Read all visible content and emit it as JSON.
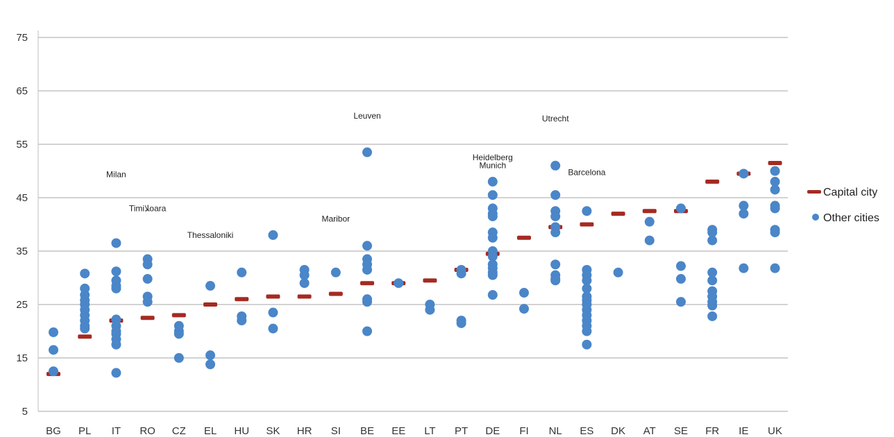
{
  "chart_data": {
    "type": "scatter",
    "title": "",
    "xlabel": "",
    "ylabel": "",
    "ylim": [
      5,
      80
    ],
    "yticks": [
      5,
      15,
      25,
      35,
      45,
      55,
      65,
      75
    ],
    "grid": true,
    "legend_position": "right",
    "categories": [
      "BG",
      "PL",
      "IT",
      "RO",
      "CZ",
      "EL",
      "HU",
      "SK",
      "HR",
      "SI",
      "BE",
      "EE",
      "LT",
      "PT",
      "DE",
      "FI",
      "NL",
      "ES",
      "DK",
      "AT",
      "SE",
      "FR",
      "IE",
      "UK"
    ],
    "series": [
      {
        "name": "Capital city",
        "color": "#a52a22",
        "marker": "dash",
        "values": [
          12,
          19,
          22,
          22.5,
          23,
          25,
          26,
          26.5,
          26.5,
          27,
          29,
          29,
          29.5,
          31.5,
          34.5,
          37.5,
          39.5,
          40,
          42,
          42.5,
          42.5,
          48,
          49.5,
          51.5
        ]
      },
      {
        "name": "Other cities",
        "color": "#4a86c8",
        "marker": "circle",
        "points": [
          {
            "category": "BG",
            "values": [
              19.8,
              16.5,
              12.5
            ]
          },
          {
            "category": "PL",
            "values": [
              30.8,
              28,
              26.8,
              25.8,
              25,
              24,
              23,
              22,
              21,
              20.5
            ]
          },
          {
            "category": "IT",
            "values": [
              36.5,
              31.2,
              29.5,
              28.5,
              28,
              22.2,
              21,
              20,
              19.5,
              18.5,
              17.5,
              12.2
            ]
          },
          {
            "category": "RO",
            "values": [
              33.5,
              32.5,
              29.8,
              26.5,
              25.5
            ]
          },
          {
            "category": "CZ",
            "values": [
              21,
              20,
              19.5,
              15
            ]
          },
          {
            "category": "EL",
            "values": [
              28.5,
              15.5,
              13.8
            ]
          },
          {
            "category": "HU",
            "values": [
              31,
              22.8,
              22
            ]
          },
          {
            "category": "SK",
            "values": [
              38,
              23.5,
              20.5
            ]
          },
          {
            "category": "HR",
            "values": [
              31.5,
              30.5,
              29
            ]
          },
          {
            "category": "SI",
            "values": [
              31
            ]
          },
          {
            "category": "BE",
            "values": [
              53.5,
              36,
              33.5,
              32.5,
              31.5,
              26,
              25.5,
              20
            ]
          },
          {
            "category": "EE",
            "values": [
              29
            ]
          },
          {
            "category": "LT",
            "values": [
              25,
              24
            ]
          },
          {
            "category": "PT",
            "values": [
              31.5,
              30.8,
              22,
              21.5
            ]
          },
          {
            "category": "DE",
            "values": [
              48,
              45.5,
              43,
              42,
              41.5,
              38.5,
              37.5,
              35,
              34,
              32.5,
              31.8,
              31,
              30.5,
              26.8
            ]
          },
          {
            "category": "FI",
            "values": [
              27.2,
              24.2
            ]
          },
          {
            "category": "NL",
            "values": [
              51,
              45.5,
              42.5,
              41.5,
              39.5,
              38.5,
              32.5,
              30.5,
              29.8,
              29.5
            ]
          },
          {
            "category": "ES",
            "values": [
              42.5,
              31.5,
              30.5,
              29.5,
              28,
              26.5,
              25.8,
              25,
              24,
              23,
              22,
              21,
              20,
              17.5
            ]
          },
          {
            "category": "DK",
            "values": [
              31
            ]
          },
          {
            "category": "AT",
            "values": [
              40.5,
              37
            ]
          },
          {
            "category": "SE",
            "values": [
              43,
              32.2,
              29.8,
              25.5
            ]
          },
          {
            "category": "FR",
            "values": [
              39,
              38.5,
              37,
              31,
              29.5,
              27.5,
              26.5,
              25.5,
              24.8,
              22.8
            ]
          },
          {
            "category": "IE",
            "values": [
              49.5,
              43.5,
              42,
              31.8
            ]
          },
          {
            "category": "UK",
            "values": [
              50,
              48,
              46.5,
              43.5,
              43,
              39,
              38.5,
              31.8
            ]
          }
        ]
      }
    ],
    "annotations": [
      {
        "text": "Milan",
        "category": "IT",
        "y": 48.8
      },
      {
        "text": "Timiﻼoara",
        "category": "RO",
        "y": 42.5
      },
      {
        "text": "Thessaloniki",
        "category": "EL",
        "y": 37.5
      },
      {
        "text": "Maribor",
        "category": "SI",
        "y": 40.5
      },
      {
        "text": "Leuven",
        "category": "BE",
        "y": 59.8
      },
      {
        "text": "Heidelberg",
        "category": "DE",
        "y": 52
      },
      {
        "text": "Munich",
        "category": "DE",
        "y": 50.5
      },
      {
        "text": "Utrecht",
        "category": "NL",
        "y": 59.3
      },
      {
        "text": "Barcelona",
        "category": "ES",
        "y": 49.2
      }
    ]
  },
  "legend": {
    "items": [
      {
        "label": "Capital city",
        "color": "#a52a22",
        "marker": "dash"
      },
      {
        "label": "Other cities",
        "color": "#4a86c8",
        "marker": "circle"
      }
    ]
  }
}
